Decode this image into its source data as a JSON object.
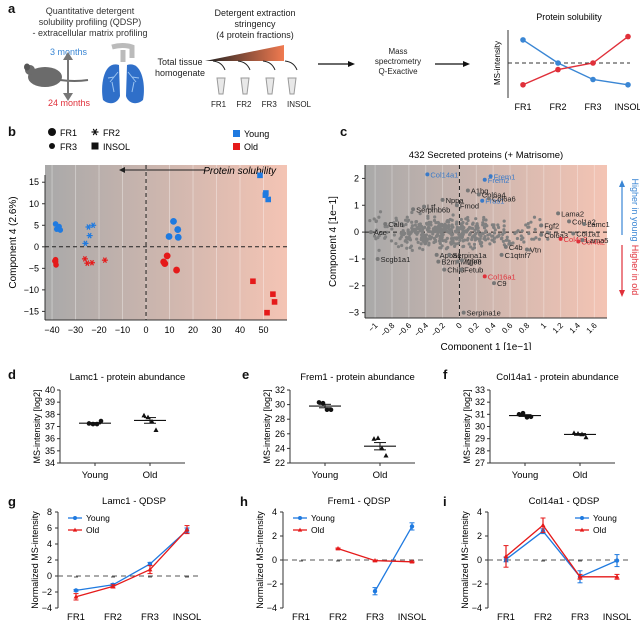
{
  "panel_letters": [
    "a",
    "b",
    "c",
    "d",
    "e",
    "f",
    "g",
    "h",
    "i"
  ],
  "panel_a": {
    "title_lines": [
      "Quantitative detergent",
      "solubility profiling (QDSP)",
      "- extracellular matrix profiling"
    ],
    "age_young": "3 months",
    "age_old": "24 months",
    "homogenate_lines": [
      "Total tissue",
      "homogenate"
    ],
    "stringency_lines": [
      "Detergent extraction",
      "stringency",
      "(4 protein fractions)"
    ],
    "fractions": [
      "FR1",
      "FR2",
      "FR3",
      "INSOL"
    ],
    "ms_lines": [
      "Mass",
      "spectrometry",
      "Q-Exactive"
    ],
    "colors": {
      "young": "#3a86d4",
      "old": "#e0303a",
      "lung": "#2f6fc9"
    }
  },
  "chart_data": [
    {
      "id": "a-schematic",
      "type": "line",
      "title": "Protein solubility",
      "ylabel": "MS-intensity",
      "categories": [
        "FR1",
        "FR2",
        "FR3",
        "INSOL"
      ],
      "series": [
        {
          "name": "Young",
          "color": "#3a86d4",
          "values": [
            0.85,
            0.5,
            0.25,
            0.17
          ]
        },
        {
          "name": "Old",
          "color": "#e0303a",
          "values": [
            0.17,
            0.4,
            0.5,
            0.9
          ]
        }
      ],
      "ylim": [
        0,
        1
      ],
      "reference_line": 0.5
    },
    {
      "id": "b",
      "type": "scatter",
      "title": "",
      "xlabel": "Component 1 (60.7%)",
      "ylabel": "Component 4 (2.6%)",
      "xlim": [
        -43,
        60
      ],
      "ylim": [
        -17,
        19
      ],
      "xticks": [
        -40,
        -30,
        -20,
        -10,
        0,
        10,
        20,
        30,
        40,
        50
      ],
      "yticks": [
        -15,
        -10,
        -5,
        0,
        5,
        10,
        15
      ],
      "annotation": "Protein solubility",
      "legend_shapes": [
        {
          "shape": "circle-large",
          "label": "FR1"
        },
        {
          "shape": "star",
          "label": "FR2"
        },
        {
          "shape": "circle-small",
          "label": "FR3"
        },
        {
          "shape": "square",
          "label": "INSOL"
        }
      ],
      "legend_groups": [
        {
          "label": "Young",
          "color": "#1f7ae0"
        },
        {
          "label": "Old",
          "color": "#e51a1a"
        }
      ],
      "points": [
        {
          "g": "Young",
          "f": "FR3",
          "x": -38.5,
          "y": 5.3
        },
        {
          "g": "Young",
          "f": "FR3",
          "x": -37,
          "y": 4.7
        },
        {
          "g": "Young",
          "f": "FR3",
          "x": -38,
          "y": 4.1
        },
        {
          "g": "Young",
          "f": "FR3",
          "x": -36.5,
          "y": 3.9
        },
        {
          "g": "Old",
          "f": "FR3",
          "x": -38.5,
          "y": -3.0
        },
        {
          "g": "Old",
          "f": "FR3",
          "x": -38.5,
          "y": -3.5
        },
        {
          "g": "Old",
          "f": "FR3",
          "x": -38.3,
          "y": -4.2
        },
        {
          "g": "Old",
          "f": "FR3",
          "x": -38.8,
          "y": -3.3
        },
        {
          "g": "Young",
          "f": "FR2",
          "x": -24.5,
          "y": 4.6
        },
        {
          "g": "Young",
          "f": "FR2",
          "x": -22.5,
          "y": 5.0
        },
        {
          "g": "Young",
          "f": "FR2",
          "x": -24,
          "y": 2.6
        },
        {
          "g": "Young",
          "f": "FR2",
          "x": -25.8,
          "y": 0.8
        },
        {
          "g": "Old",
          "f": "FR2",
          "x": -26,
          "y": -2.8
        },
        {
          "g": "Old",
          "f": "FR2",
          "x": -25,
          "y": -3.8
        },
        {
          "g": "Old",
          "f": "FR2",
          "x": -23,
          "y": -3.7
        },
        {
          "g": "Old",
          "f": "FR2",
          "x": -17.5,
          "y": -3.1
        },
        {
          "g": "Young",
          "f": "FR1",
          "x": 11.7,
          "y": 5.9
        },
        {
          "g": "Young",
          "f": "FR1",
          "x": 13.5,
          "y": 4.0
        },
        {
          "g": "Young",
          "f": "FR1",
          "x": 9.8,
          "y": 2.4
        },
        {
          "g": "Young",
          "f": "FR1",
          "x": 13.7,
          "y": 2.2
        },
        {
          "g": "Old",
          "f": "FR1",
          "x": 9,
          "y": -2.1
        },
        {
          "g": "Old",
          "f": "FR1",
          "x": 7.5,
          "y": -3.5
        },
        {
          "g": "Old",
          "f": "FR1",
          "x": 8,
          "y": -3.9
        },
        {
          "g": "Old",
          "f": "FR1",
          "x": 13,
          "y": -5.4
        },
        {
          "g": "Young",
          "f": "INSOL",
          "x": 48.5,
          "y": 16.6
        },
        {
          "g": "Young",
          "f": "INSOL",
          "x": 51,
          "y": 12.5
        },
        {
          "g": "Young",
          "f": "INSOL",
          "x": 50.8,
          "y": 12.0
        },
        {
          "g": "Young",
          "f": "INSOL",
          "x": 52,
          "y": 11.0
        },
        {
          "g": "Old",
          "f": "INSOL",
          "x": 45.5,
          "y": -8.0
        },
        {
          "g": "Old",
          "f": "INSOL",
          "x": 54,
          "y": -11.0
        },
        {
          "g": "Old",
          "f": "INSOL",
          "x": 54.7,
          "y": -12.8
        },
        {
          "g": "Old",
          "f": "INSOL",
          "x": 51.5,
          "y": -15.3
        }
      ]
    },
    {
      "id": "c",
      "type": "scatter",
      "title": "432 Secreted proteins (+ Matrisome)",
      "xlabel": "Component 1 [1e−1]",
      "ylabel": "Component 4 [1e−1]",
      "xlim": [
        -1.12,
        1.75
      ],
      "ylim": [
        -3.2,
        2.5
      ],
      "xticks": [
        "-1",
        "-0.8",
        "-0.6",
        "-0.4",
        "-0.2",
        "0",
        "0.2",
        "0.4",
        "0.6",
        "0.8",
        "1",
        "1.2",
        "1.4",
        "1.6"
      ],
      "yticks": [
        -3,
        -2,
        -1,
        0,
        1,
        2
      ],
      "side_labels": {
        "up": "Higher in young",
        "down": "Higher in old"
      },
      "background_point_count": 432,
      "labeled_points": [
        {
          "label": "Col14a1",
          "x": -0.38,
          "y": 2.15,
          "color": "blue"
        },
        {
          "label": "Frem1",
          "x": 0.37,
          "y": 2.08,
          "color": "blue"
        },
        {
          "label": "Frem2",
          "x": 0.3,
          "y": 1.95,
          "color": "blue"
        },
        {
          "label": "Fras1",
          "x": 0.27,
          "y": 1.17,
          "color": "blue"
        },
        {
          "label": "A1bg",
          "x": 0.1,
          "y": 1.55,
          "color": "gray"
        },
        {
          "label": "Col6a4",
          "x": 0.23,
          "y": 1.4,
          "color": "gray"
        },
        {
          "label": "Col6a6",
          "x": 0.35,
          "y": 1.25,
          "color": "gray"
        },
        {
          "label": "Nppa",
          "x": -0.2,
          "y": 1.2,
          "color": "gray"
        },
        {
          "label": "Ltf",
          "x": -0.42,
          "y": 0.95,
          "color": "gray"
        },
        {
          "label": "Serpinb6b",
          "x": -0.55,
          "y": 0.85,
          "color": "gray"
        },
        {
          "label": "Fmod",
          "x": -0.03,
          "y": 1.0,
          "color": "gray"
        },
        {
          "label": "Calu",
          "x": -0.88,
          "y": 0.3,
          "color": "gray"
        },
        {
          "label": "Ace",
          "x": -1.05,
          "y": 0.0,
          "color": "gray"
        },
        {
          "label": "Scgb1a1",
          "x": -0.97,
          "y": -1.0,
          "color": "gray"
        },
        {
          "label": "Apoa1",
          "x": -0.27,
          "y": -0.85,
          "color": "gray"
        },
        {
          "label": "B2m",
          "x": -0.25,
          "y": -1.1,
          "color": "gray"
        },
        {
          "label": "Serpina1a",
          "x": -0.12,
          "y": -0.85,
          "color": "gray"
        },
        {
          "label": "Mfge8",
          "x": -0.02,
          "y": -1.1,
          "color": "gray"
        },
        {
          "label": "Chil3",
          "x": -0.18,
          "y": -1.4,
          "color": "gray"
        },
        {
          "label": "Ighm",
          "x": 0.03,
          "y": -1.05,
          "color": "gray"
        },
        {
          "label": "Fetub",
          "x": 0.02,
          "y": -1.4,
          "color": "gray"
        },
        {
          "label": "C4b",
          "x": 0.55,
          "y": -0.55,
          "color": "gray"
        },
        {
          "label": "C1qtnf7",
          "x": 0.5,
          "y": -0.85,
          "color": "gray"
        },
        {
          "label": "Vtn",
          "x": 0.8,
          "y": -0.65,
          "color": "gray"
        },
        {
          "label": "Col16a1",
          "x": 0.3,
          "y": -1.65,
          "color": "red"
        },
        {
          "label": "C9",
          "x": 0.41,
          "y": -1.9,
          "color": "gray"
        },
        {
          "label": "Serpina1e",
          "x": 0.05,
          "y": -3.0,
          "color": "gray"
        },
        {
          "label": "Fgf2",
          "x": 0.97,
          "y": 0.25,
          "color": "gray"
        },
        {
          "label": "Col6a3",
          "x": 0.97,
          "y": -0.1,
          "color": "gray"
        },
        {
          "label": "Col4a3",
          "x": 1.2,
          "y": -0.25,
          "color": "red"
        },
        {
          "label": "Col4a2",
          "x": 1.41,
          "y": -0.35,
          "color": "red"
        },
        {
          "label": "Lama2",
          "x": 1.17,
          "y": 0.7,
          "color": "gray"
        },
        {
          "label": "Col1a2",
          "x": 1.3,
          "y": 0.4,
          "color": "gray"
        },
        {
          "label": "Lamc1",
          "x": 1.48,
          "y": 0.3,
          "color": "gray"
        },
        {
          "label": "Col1a1",
          "x": 1.35,
          "y": -0.05,
          "color": "gray"
        },
        {
          "label": "Lama5",
          "x": 1.46,
          "y": -0.3,
          "color": "gray"
        }
      ]
    },
    {
      "id": "d",
      "type": "scatter",
      "title": "Lamc1 - protein abundance",
      "ylabel": "MS-intensity [log2]",
      "categories": [
        "Young",
        "Old"
      ],
      "ylim": [
        34,
        40
      ],
      "yticks": [
        34,
        35,
        36,
        37,
        38,
        39,
        40
      ],
      "groups": [
        {
          "name": "Young",
          "marker": "circle",
          "values": [
            37.25,
            37.2,
            37.2,
            37.45
          ],
          "mean": 37.27
        },
        {
          "name": "Old",
          "marker": "triangle",
          "values": [
            37.9,
            37.75,
            37.4,
            36.7
          ],
          "mean": 37.5
        }
      ]
    },
    {
      "id": "e",
      "type": "scatter",
      "title": "Frem1 - protein abundance",
      "ylabel": "MS-intensity [log2]",
      "categories": [
        "Young",
        "Old"
      ],
      "ylim": [
        22,
        32
      ],
      "yticks": [
        22,
        24,
        26,
        28,
        30,
        32
      ],
      "groups": [
        {
          "name": "Young",
          "marker": "circle",
          "values": [
            30.3,
            30.2,
            29.3,
            29.3
          ],
          "mean": 29.8
        },
        {
          "name": "Old",
          "marker": "triangle",
          "values": [
            25.3,
            25.4,
            24.0,
            23.0
          ],
          "mean": 24.3
        }
      ]
    },
    {
      "id": "f",
      "type": "scatter",
      "title": "Col14a1 - protein abundance",
      "ylabel": "MS-intensity [log2]",
      "categories": [
        "Young",
        "Old"
      ],
      "ylim": [
        27,
        33
      ],
      "yticks": [
        27,
        28,
        29,
        30,
        31,
        32,
        33
      ],
      "groups": [
        {
          "name": "Young",
          "marker": "circle",
          "values": [
            31.0,
            31.1,
            30.75,
            30.8
          ],
          "mean": 30.9
        },
        {
          "name": "Old",
          "marker": "triangle",
          "values": [
            29.45,
            29.4,
            29.35,
            29.1
          ],
          "mean": 29.35
        }
      ]
    },
    {
      "id": "g",
      "type": "line",
      "title": "Lamc1 - QDSP",
      "ylabel": "Normalized MS-intensity",
      "categories": [
        "FR1",
        "FR2",
        "FR3",
        "INSOL"
      ],
      "ylim": [
        -4,
        8
      ],
      "yticks": [
        -4,
        -2,
        0,
        2,
        4,
        6,
        8
      ],
      "legend": "top-left",
      "series": [
        {
          "name": "Young",
          "color": "#1f7ae0",
          "marker": "circle",
          "values": [
            -1.8,
            -1.1,
            1.5,
            5.7
          ],
          "err": [
            0.1,
            0.15,
            0.2,
            0.3
          ]
        },
        {
          "name": "Old",
          "color": "#e51a1a",
          "marker": "triangle",
          "values": [
            -2.6,
            -1.3,
            0.8,
            5.8
          ],
          "err": [
            0.4,
            0.2,
            0.5,
            0.5
          ]
        }
      ]
    },
    {
      "id": "h",
      "type": "line",
      "title": "Frem1 - QDSP",
      "ylabel": "Normalized MS-intensity",
      "categories": [
        "FR1",
        "FR2",
        "FR3",
        "INSOL"
      ],
      "ylim": [
        -4,
        4
      ],
      "yticks": [
        -4,
        -2,
        0,
        2,
        4
      ],
      "legend": "top-left",
      "series": [
        {
          "name": "Young",
          "color": "#1f7ae0",
          "marker": "circle",
          "values": [
            null,
            null,
            -2.6,
            2.8
          ],
          "err": [
            0,
            0,
            0.3,
            0.3
          ]
        },
        {
          "name": "Old",
          "color": "#e51a1a",
          "marker": "triangle",
          "values": [
            null,
            0.95,
            -0.05,
            -0.15
          ],
          "err": [
            0,
            0.05,
            0.05,
            0.05
          ]
        }
      ]
    },
    {
      "id": "i",
      "type": "line",
      "title": "Col14a1 - QDSP",
      "ylabel": "Normalized MS-intensity",
      "categories": [
        "FR1",
        "FR2",
        "FR3",
        "INSOL"
      ],
      "ylim": [
        -4,
        4
      ],
      "yticks": [
        -4,
        -2,
        0,
        2,
        4
      ],
      "legend": "top-right",
      "series": [
        {
          "name": "Young",
          "color": "#1f7ae0",
          "marker": "circle",
          "values": [
            0.05,
            2.4,
            -1.4,
            -0.05
          ],
          "err": [
            0.2,
            0.2,
            0.5,
            0.5
          ]
        },
        {
          "name": "Old",
          "color": "#e51a1a",
          "marker": "triangle",
          "values": [
            0.3,
            2.9,
            -1.4,
            -1.4
          ],
          "err": [
            0.9,
            0.6,
            0.2,
            0.2
          ]
        }
      ]
    }
  ]
}
